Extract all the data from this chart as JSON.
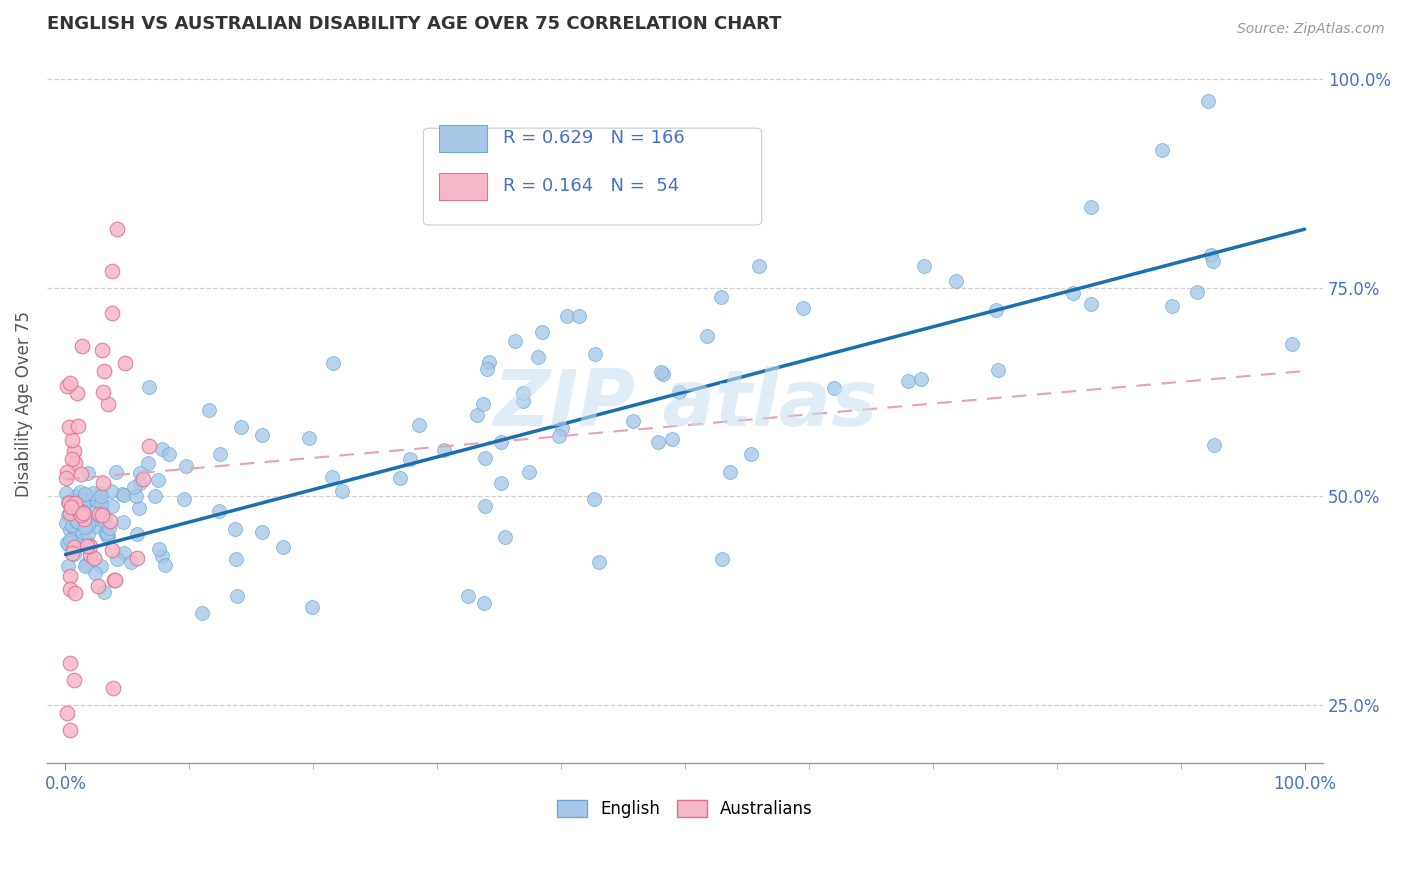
{
  "title": "ENGLISH VS AUSTRALIAN DISABILITY AGE OVER 75 CORRELATION CHART",
  "source_text": "Source: ZipAtlas.com",
  "ylabel": "Disability Age Over 75",
  "xmin": 0.0,
  "xmax": 1.0,
  "ymin": 0.18,
  "ymax": 1.04,
  "english_color": "#a8c8e8",
  "english_edge_color": "#6aaad4",
  "english_line_color": "#1a6faf",
  "australian_color": "#f5b8c8",
  "australian_edge_color": "#e07090",
  "australian_line_color": "#e8a0b8",
  "R_english": 0.629,
  "N_english": 166,
  "R_australian": 0.164,
  "N_australian": 54,
  "eng_line_x0": 0.0,
  "eng_line_y0": 0.43,
  "eng_line_x1": 1.0,
  "eng_line_y1": 0.82,
  "aus_line_x0": 0.0,
  "aus_line_y0": 0.52,
  "aus_line_x1": 1.0,
  "aus_line_y1": 0.65,
  "watermark_color": "#c8dff0",
  "background_color": "#ffffff",
  "grid_color": "#d0d0d0",
  "ytick_values": [
    0.25,
    0.5,
    0.75,
    1.0
  ],
  "ytick_labels": [
    "25.0%",
    "50.0%",
    "75.0%",
    "100.0%"
  ],
  "title_color": "#333333",
  "axis_color": "#4472c4",
  "ylabel_color": "#555555"
}
